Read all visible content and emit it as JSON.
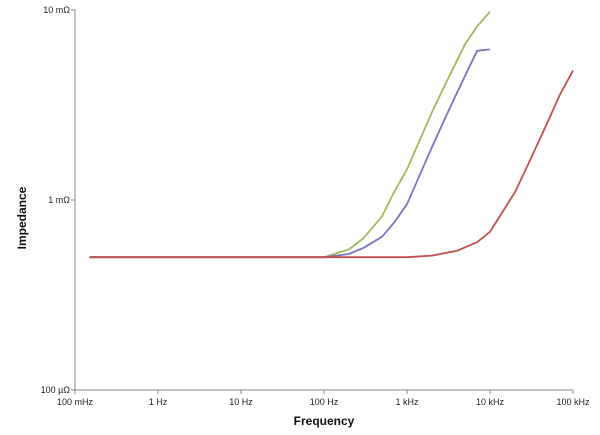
{
  "chart_data": {
    "type": "line",
    "title": "",
    "xlabel": "Frequency",
    "ylabel": "Impedance",
    "x_scale": "log",
    "y_scale": "log",
    "xlim": [
      0.1,
      100000
    ],
    "ylim": [
      0.0001,
      0.01
    ],
    "x_ticks": [
      {
        "value": 0.1,
        "label": "100 mHz"
      },
      {
        "value": 1,
        "label": "1 Hz"
      },
      {
        "value": 10,
        "label": "10 Hz"
      },
      {
        "value": 100,
        "label": "100 Hz"
      },
      {
        "value": 1000,
        "label": "1 kHz"
      },
      {
        "value": 10000,
        "label": "10 kHz"
      },
      {
        "value": 100000,
        "label": "100 kHz"
      }
    ],
    "y_ticks": [
      {
        "value": 0.0001,
        "label": "100 µΩ"
      },
      {
        "value": 0.001,
        "label": "1 mΩ"
      },
      {
        "value": 0.01,
        "label": "10 mΩ"
      }
    ],
    "grid": false,
    "legend": "none",
    "series": [
      {
        "color": "#9bbb59",
        "x": [
          0.15,
          1,
          10,
          100,
          200,
          300,
          500,
          700,
          1000,
          2000,
          3000,
          5000,
          7000,
          10000
        ],
        "y": [
          0.0005,
          0.0005,
          0.0005,
          0.0005,
          0.00055,
          0.00063,
          0.00082,
          0.0011,
          0.00145,
          0.0029,
          0.0042,
          0.0066,
          0.0082,
          0.0098
        ]
      },
      {
        "color": "#7f73c0",
        "x": [
          0.15,
          1,
          10,
          100,
          200,
          300,
          500,
          700,
          1000,
          2000,
          3000,
          5000,
          7000,
          10000
        ],
        "y": [
          0.0005,
          0.0005,
          0.0005,
          0.0005,
          0.00052,
          0.00056,
          0.00064,
          0.00076,
          0.00095,
          0.0019,
          0.0028,
          0.0045,
          0.0061,
          0.0062
        ]
      },
      {
        "color": "#c0504d",
        "x": [
          0.15,
          1,
          10,
          100,
          300,
          1000,
          2000,
          4000,
          7000,
          10000,
          20000,
          30000,
          50000,
          70000,
          100000
        ],
        "y": [
          0.0005,
          0.0005,
          0.0005,
          0.0005,
          0.0005,
          0.0005,
          0.00051,
          0.00054,
          0.0006,
          0.00068,
          0.0011,
          0.0016,
          0.0026,
          0.0036,
          0.0048
        ]
      }
    ]
  }
}
